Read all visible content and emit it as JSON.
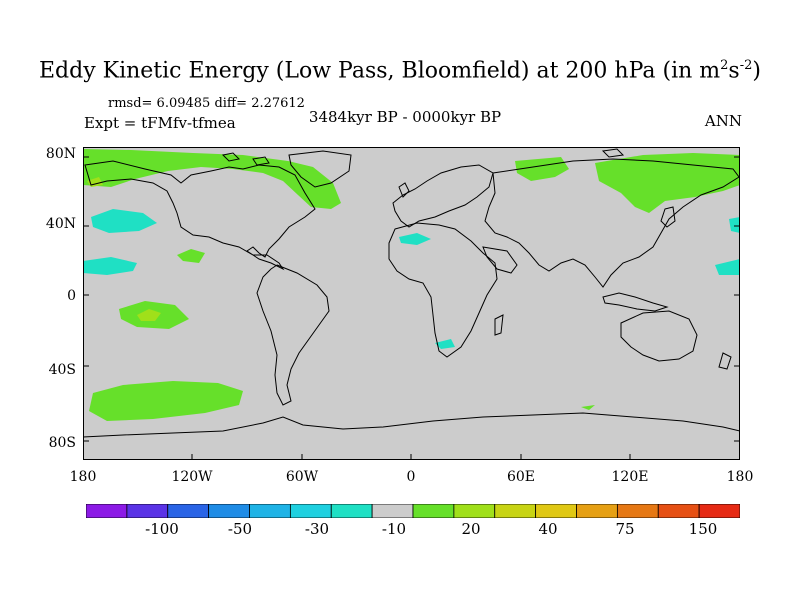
{
  "title": {
    "main": "Eddy Kinetic Energy (Low Pass, Bloomfield) at 200 hPa (in m",
    "sup1": "2",
    "s": "s",
    "sup2": "-2",
    "close": ")"
  },
  "stats": "rmsd= 6.09485 diff= 2.27612",
  "expt": "Expt = tFMfv-tfmea",
  "period": "3484kyr BP - 0000kyr BP",
  "season": "ANN",
  "axes": {
    "y_labels": [
      "80N",
      "40N",
      "0",
      "40S",
      "80S"
    ],
    "x_labels": [
      "180",
      "120W",
      "60W",
      "0",
      "60E",
      "120E",
      "180"
    ]
  },
  "colorbar": {
    "colors": [
      "#8c1ae6",
      "#5a33e6",
      "#2a64e6",
      "#1f8ce6",
      "#1fb3e6",
      "#1fd0e0",
      "#1fe0c4",
      "#cccccc",
      "#66e02a",
      "#a0e01a",
      "#c8d414",
      "#e0c814",
      "#e6a014",
      "#e67814",
      "#e65014",
      "#e62a14"
    ],
    "labels": [
      "-100",
      "-50",
      "-30",
      "-10",
      "20",
      "40",
      "75",
      "150"
    ]
  },
  "field_colors": {
    "background": "#cccccc",
    "positive_low": "#66e02a",
    "positive_mid": "#a0e01a",
    "negative_low": "#1fe0c4",
    "coast": "#000000"
  }
}
